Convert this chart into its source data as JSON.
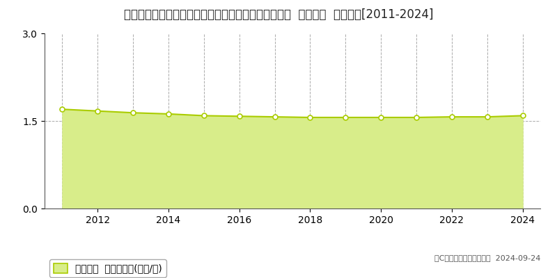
{
  "title": "山形県西置賜郡飯豊町大字萩生字岡５２９番６外１筆  基準地価  地価推移[2011-2024]",
  "years": [
    2011,
    2012,
    2013,
    2014,
    2015,
    2016,
    2017,
    2018,
    2019,
    2020,
    2021,
    2022,
    2023,
    2024
  ],
  "values": [
    1.7,
    1.67,
    1.64,
    1.62,
    1.59,
    1.58,
    1.57,
    1.56,
    1.56,
    1.56,
    1.56,
    1.57,
    1.57,
    1.59
  ],
  "ylim": [
    0,
    3
  ],
  "yticks": [
    0,
    1.5,
    3
  ],
  "line_color": "#aacc00",
  "fill_color": "#d8ed8a",
  "marker_face": "#ffffff",
  "marker_edge": "#aacc00",
  "bg_color": "#ffffff",
  "grid_color": "#aaaaaa",
  "legend_label": "基準地価  平均坪単価(万円/坪)",
  "copyright_text": "（C）土地価格ドットコム  2024-09-24",
  "title_fontsize": 12,
  "tick_fontsize": 10,
  "legend_fontsize": 10,
  "copyright_fontsize": 8
}
